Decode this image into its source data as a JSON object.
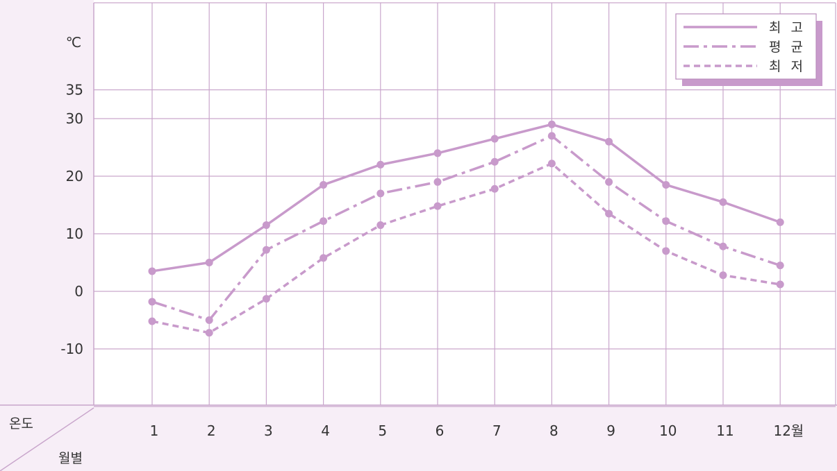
{
  "chart_data": {
    "type": "line",
    "title": "",
    "ylabel": "℃",
    "xlabel_corner_top": "온도",
    "xlabel_corner_bottom": "월별",
    "month_suffix": "월",
    "categories": [
      "1",
      "2",
      "3",
      "4",
      "5",
      "6",
      "7",
      "8",
      "9",
      "10",
      "11",
      "12"
    ],
    "y_ticks": [
      35,
      30,
      20,
      10,
      0,
      -10
    ],
    "y_tick_labels": [
      "35",
      "30",
      "20",
      "10",
      "0",
      "-10"
    ],
    "ylim": [
      -20,
      40
    ],
    "grid": true,
    "legend_position": "top-right",
    "series": [
      {
        "name": "최 고",
        "style": "solid",
        "values": [
          3.5,
          5,
          11.5,
          18.5,
          22,
          24,
          26.5,
          29,
          26,
          18.5,
          15.5,
          12
        ]
      },
      {
        "name": "평 균",
        "style": "dashdot",
        "values": [
          -1.8,
          -5,
          7.2,
          12.2,
          17,
          19,
          22.5,
          27,
          19,
          12.2,
          7.8,
          4.5
        ]
      },
      {
        "name": "최 저",
        "style": "dashed",
        "values": [
          -5.2,
          -7.2,
          -1.3,
          5.8,
          11.5,
          14.8,
          17.8,
          22.2,
          13.5,
          7,
          2.8,
          1.2
        ]
      }
    ]
  },
  "colors": {
    "line": "#c89acb",
    "grid": "#c9a6cc",
    "axis_band": "#f7eef7",
    "legend_shadow": "#c89acb"
  }
}
